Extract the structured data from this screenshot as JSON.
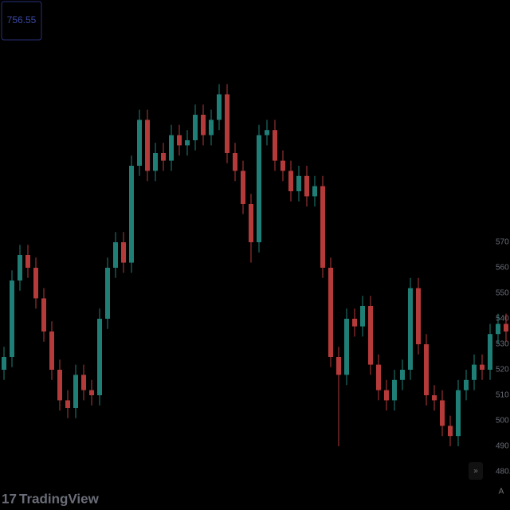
{
  "chart_data": {
    "type": "candlestick",
    "price_box": "756.55",
    "watermark": "TradingView",
    "up_color": "#1f7f76",
    "down_color": "#b53a3a",
    "open": [
      520,
      525,
      555,
      565,
      560,
      548,
      535,
      520,
      508,
      505,
      518,
      512,
      510,
      540,
      560,
      570,
      562,
      600,
      618,
      598,
      605,
      602,
      612,
      608,
      610,
      620,
      612,
      618,
      628,
      605,
      598,
      585,
      570,
      612,
      614,
      602,
      598,
      590,
      596,
      588,
      592,
      560,
      525,
      518,
      540,
      537,
      545,
      522,
      512,
      508,
      516,
      520,
      552,
      530,
      510,
      508,
      498,
      494,
      512,
      516,
      522,
      520,
      534,
      538
    ],
    "high": [
      529,
      559,
      569,
      569,
      564,
      552,
      539,
      524,
      512,
      522,
      522,
      516,
      544,
      564,
      574,
      574,
      604,
      622,
      622,
      609,
      609,
      616,
      616,
      614,
      624,
      624,
      622,
      632,
      632,
      609,
      602,
      589,
      616,
      618,
      618,
      606,
      602,
      600,
      600,
      596,
      596,
      564,
      529,
      544,
      544,
      549,
      549,
      526,
      516,
      520,
      524,
      556,
      556,
      534,
      514,
      512,
      502,
      516,
      520,
      526,
      526,
      538,
      542,
      542
    ],
    "low": [
      516,
      521,
      551,
      556,
      544,
      531,
      516,
      504,
      501,
      501,
      508,
      506,
      506,
      536,
      556,
      558,
      558,
      596,
      594,
      594,
      598,
      598,
      604,
      604,
      606,
      608,
      608,
      614,
      601,
      594,
      581,
      562,
      566,
      608,
      598,
      594,
      586,
      586,
      584,
      584,
      556,
      521,
      490,
      514,
      533,
      533,
      518,
      508,
      504,
      504,
      512,
      516,
      526,
      506,
      504,
      494,
      490,
      490,
      508,
      512,
      516,
      516,
      530,
      531
    ],
    "close": [
      525,
      555,
      565,
      560,
      548,
      535,
      520,
      508,
      505,
      518,
      512,
      510,
      540,
      560,
      570,
      562,
      600,
      618,
      598,
      605,
      602,
      612,
      608,
      610,
      620,
      612,
      618,
      628,
      605,
      598,
      585,
      570,
      612,
      614,
      602,
      598,
      590,
      596,
      588,
      592,
      560,
      525,
      518,
      540,
      537,
      545,
      522,
      512,
      508,
      516,
      520,
      552,
      530,
      510,
      508,
      498,
      494,
      512,
      516,
      522,
      520,
      534,
      538,
      535
    ],
    "ylim": [
      465,
      665
    ],
    "yticks": [
      {
        "value": 480,
        "label": "480.0"
      },
      490,
      500,
      510,
      520,
      530,
      540,
      550,
      560,
      570
    ]
  }
}
